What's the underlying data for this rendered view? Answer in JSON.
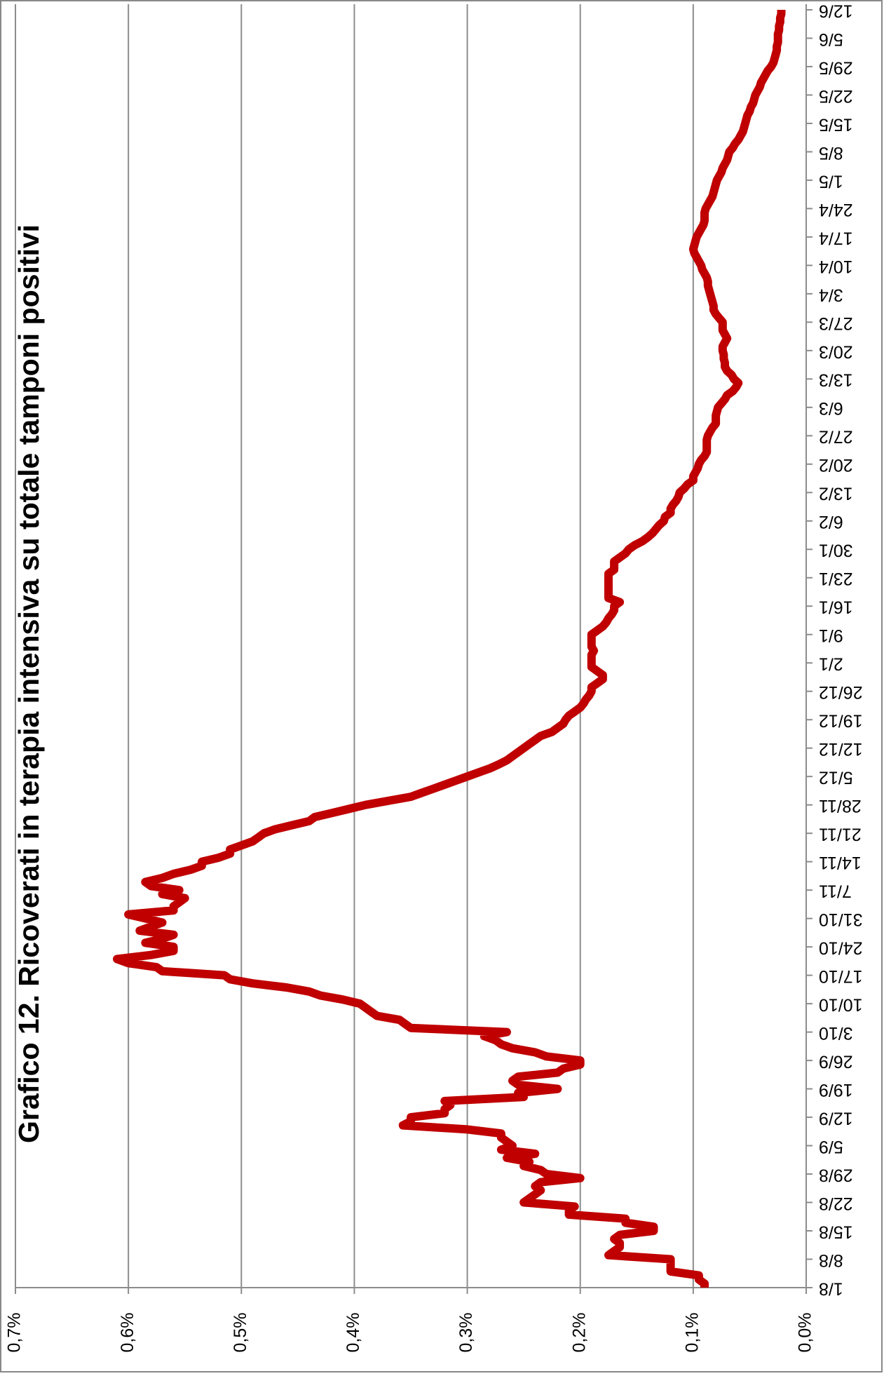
{
  "chart_data": {
    "type": "line",
    "title": "Grafico 12. Ricoverati in terapia intensiva su totale tamponi positivi",
    "categories": [
      "1/8",
      null,
      null,
      null,
      null,
      null,
      null,
      "8/8",
      null,
      null,
      null,
      null,
      null,
      null,
      "15/8",
      null,
      null,
      null,
      null,
      null,
      null,
      "22/8",
      null,
      null,
      null,
      null,
      null,
      null,
      "29/8",
      null,
      null,
      null,
      null,
      null,
      null,
      "5/9",
      null,
      null,
      null,
      null,
      null,
      null,
      "12/9",
      null,
      null,
      null,
      null,
      null,
      null,
      "19/9",
      null,
      null,
      null,
      null,
      null,
      null,
      "26/9",
      null,
      null,
      null,
      null,
      null,
      null,
      "3/10",
      null,
      null,
      null,
      null,
      null,
      null,
      "10/10",
      null,
      null,
      null,
      null,
      null,
      null,
      "17/10",
      null,
      null,
      null,
      null,
      null,
      null,
      "24/10",
      null,
      null,
      null,
      null,
      null,
      null,
      "31/10",
      null,
      null,
      null,
      null,
      null,
      null,
      "7/11",
      null,
      null,
      null,
      null,
      null,
      null,
      "14/11",
      null,
      null,
      null,
      null,
      null,
      null,
      "21/11",
      null,
      null,
      null,
      null,
      null,
      null,
      "28/11",
      null,
      null,
      null,
      null,
      null,
      null,
      "5/12",
      null,
      null,
      null,
      null,
      null,
      null,
      "12/12",
      null,
      null,
      null,
      null,
      null,
      null,
      "19/12",
      null,
      null,
      null,
      null,
      null,
      null,
      "26/12",
      null,
      null,
      null,
      null,
      null,
      null,
      "2/1",
      null,
      null,
      null,
      null,
      null,
      null,
      "9/1",
      null,
      null,
      null,
      null,
      null,
      null,
      "16/1",
      null,
      null,
      null,
      null,
      null,
      null,
      "23/1",
      null,
      null,
      null,
      null,
      null,
      null,
      "30/1",
      null,
      null,
      null,
      null,
      null,
      null,
      "6/2",
      null,
      null,
      null,
      null,
      null,
      null,
      "13/2",
      null,
      null,
      null,
      null,
      null,
      null,
      "20/2",
      null,
      null,
      null,
      null,
      null,
      null,
      "27/2",
      null,
      null,
      null,
      null,
      null,
      null,
      "6/3",
      null,
      null,
      null,
      null,
      null,
      null,
      "13/3",
      null,
      null,
      null,
      null,
      null,
      null,
      "20/3",
      null,
      null,
      null,
      null,
      null,
      null,
      "27/3",
      null,
      null,
      null,
      null,
      null,
      null,
      "3/4",
      null,
      null,
      null,
      null,
      null,
      null,
      "10/4",
      null,
      null,
      null,
      null,
      null,
      null,
      "17/4",
      null,
      null,
      null,
      null,
      null,
      null,
      "24/4",
      null,
      null,
      null,
      null,
      null,
      null,
      "1/5",
      null,
      null,
      null,
      null,
      null,
      null,
      "8/5",
      null,
      null,
      null,
      null,
      null,
      null,
      "15/5",
      null,
      null,
      null,
      null,
      null,
      null,
      "22/5",
      null,
      null,
      null,
      null,
      null,
      null,
      "29/5",
      null,
      null,
      null,
      null,
      null,
      null,
      "5/6",
      null,
      null,
      null,
      null,
      null,
      null,
      "12/6"
    ],
    "values": [
      0.09,
      0.09,
      0.095,
      0.095,
      0.12,
      0.12,
      0.12,
      0.12,
      0.175,
      0.17,
      0.165,
      0.165,
      0.17,
      0.165,
      0.135,
      0.135,
      0.16,
      0.16,
      0.21,
      0.21,
      0.205,
      0.25,
      0.245,
      0.24,
      0.235,
      0.24,
      0.235,
      0.2,
      0.23,
      0.235,
      0.25,
      0.245,
      0.265,
      0.24,
      0.27,
      0.26,
      0.265,
      0.27,
      0.27,
      0.3,
      0.357,
      0.35,
      0.35,
      0.32,
      0.32,
      0.315,
      0.32,
      0.25,
      0.255,
      0.22,
      0.255,
      0.26,
      0.255,
      0.22,
      0.215,
      0.2,
      0.2,
      0.23,
      0.24,
      0.26,
      0.27,
      0.275,
      0.285,
      0.265,
      0.35,
      0.355,
      0.36,
      0.38,
      0.385,
      0.39,
      0.395,
      0.41,
      0.43,
      0.44,
      0.46,
      0.49,
      0.51,
      0.515,
      0.57,
      0.575,
      0.6,
      0.61,
      0.58,
      0.56,
      0.56,
      0.585,
      0.57,
      0.56,
      0.59,
      0.58,
      0.57,
      0.585,
      0.6,
      0.56,
      0.56,
      0.555,
      0.55,
      0.57,
      0.555,
      0.58,
      0.585,
      0.57,
      0.56,
      0.545,
      0.535,
      0.535,
      0.52,
      0.51,
      0.51,
      0.5,
      0.49,
      0.485,
      0.48,
      0.47,
      0.455,
      0.44,
      0.435,
      0.42,
      0.405,
      0.39,
      0.37,
      0.35,
      0.34,
      0.33,
      0.32,
      0.31,
      0.3,
      0.29,
      0.28,
      0.272,
      0.265,
      0.26,
      0.255,
      0.25,
      0.245,
      0.24,
      0.235,
      0.225,
      0.22,
      0.215,
      0.213,
      0.21,
      0.205,
      0.2,
      0.197,
      0.195,
      0.192,
      0.19,
      0.19,
      0.185,
      0.18,
      0.18,
      0.185,
      0.19,
      0.19,
      0.19,
      0.19,
      0.188,
      0.19,
      0.19,
      0.19,
      0.19,
      0.185,
      0.18,
      0.177,
      0.175,
      0.172,
      0.17,
      0.17,
      0.165,
      0.175,
      0.175,
      0.175,
      0.175,
      0.175,
      0.175,
      0.175,
      0.17,
      0.17,
      0.17,
      0.165,
      0.16,
      0.157,
      0.152,
      0.145,
      0.14,
      0.136,
      0.133,
      0.13,
      0.126,
      0.125,
      0.12,
      0.12,
      0.118,
      0.115,
      0.113,
      0.112,
      0.108,
      0.105,
      0.1,
      0.1,
      0.098,
      0.096,
      0.095,
      0.093,
      0.09,
      0.088,
      0.088,
      0.088,
      0.088,
      0.087,
      0.085,
      0.083,
      0.08,
      0.08,
      0.08,
      0.079,
      0.078,
      0.075,
      0.072,
      0.07,
      0.065,
      0.062,
      0.06,
      0.064,
      0.066,
      0.07,
      0.072,
      0.072,
      0.073,
      0.073,
      0.074,
      0.074,
      0.072,
      0.07,
      0.072,
      0.074,
      0.074,
      0.074,
      0.077,
      0.08,
      0.082,
      0.082,
      0.083,
      0.084,
      0.085,
      0.086,
      0.087,
      0.087,
      0.088,
      0.09,
      0.092,
      0.093,
      0.095,
      0.097,
      0.099,
      0.1,
      0.099,
      0.098,
      0.097,
      0.095,
      0.093,
      0.091,
      0.09,
      0.09,
      0.09,
      0.089,
      0.087,
      0.085,
      0.083,
      0.082,
      0.081,
      0.08,
      0.079,
      0.077,
      0.075,
      0.074,
      0.072,
      0.07,
      0.069,
      0.068,
      0.065,
      0.063,
      0.06,
      0.058,
      0.056,
      0.055,
      0.054,
      0.053,
      0.052,
      0.05,
      0.049,
      0.047,
      0.046,
      0.045,
      0.043,
      0.041,
      0.04,
      0.038,
      0.036,
      0.034,
      0.031,
      0.029,
      0.028,
      0.027,
      0.026,
      0.026,
      0.025,
      0.025,
      0.025,
      0.024,
      0.024,
      0.023,
      0.023,
      0.022,
      0.022
    ],
    "color": "#c00000",
    "ylim": [
      0,
      0.7
    ],
    "yticks": [
      {
        "value": 0,
        "label": "0,0%"
      },
      {
        "value": 0.1,
        "label": "0,1%"
      },
      {
        "value": 0.2,
        "label": "0,2%"
      },
      {
        "value": 0.3,
        "label": "0,3%"
      },
      {
        "value": 0.4,
        "label": "0,4%"
      },
      {
        "value": 0.5,
        "label": "0,5%"
      },
      {
        "value": 0.6,
        "label": "0,6%"
      },
      {
        "value": 0.7,
        "label": "0,7%"
      }
    ],
    "grid": true
  }
}
